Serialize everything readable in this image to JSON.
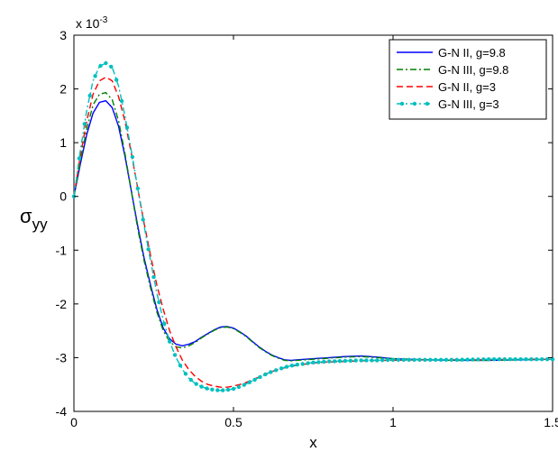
{
  "chart_data": {
    "type": "line",
    "xlabel": "x",
    "ylabel_main": "σ",
    "ylabel_sub": "yy",
    "exponent_base": "x 10",
    "exponent_power": "-3",
    "xlim": [
      0,
      1.5
    ],
    "ylim": [
      -4,
      3
    ],
    "xticks": [
      0,
      0.5,
      1,
      1.5
    ],
    "xtick_labels": [
      "0",
      "0.5",
      "1",
      "1.5"
    ],
    "yticks": [
      -4,
      -3,
      -2,
      -1,
      0,
      1,
      2,
      3
    ],
    "ytick_labels": [
      "-4",
      "-3",
      "-2",
      "-1",
      "0",
      "1",
      "2",
      "3"
    ],
    "grid": false,
    "legend_position": "top-right",
    "series": [
      {
        "name": "G-N II, g=9.8",
        "color": "#0000ff",
        "dash": "solid",
        "marker": "none",
        "x": [
          0,
          0.02,
          0.04,
          0.06,
          0.08,
          0.1,
          0.12,
          0.14,
          0.16,
          0.18,
          0.2,
          0.22,
          0.24,
          0.26,
          0.28,
          0.3,
          0.32,
          0.34,
          0.36,
          0.38,
          0.4,
          0.42,
          0.44,
          0.46,
          0.48,
          0.5,
          0.52,
          0.54,
          0.56,
          0.58,
          0.6,
          0.62,
          0.64,
          0.66,
          0.68,
          0.7,
          0.75,
          0.8,
          0.85,
          0.9,
          0.95,
          1.0,
          1.1,
          1.2,
          1.3,
          1.4,
          1.5
        ],
        "y": [
          0,
          0.6,
          1.15,
          1.55,
          1.75,
          1.78,
          1.65,
          1.3,
          0.75,
          0.1,
          -0.55,
          -1.15,
          -1.65,
          -2.1,
          -2.45,
          -2.65,
          -2.75,
          -2.78,
          -2.75,
          -2.7,
          -2.62,
          -2.55,
          -2.48,
          -2.43,
          -2.42,
          -2.45,
          -2.52,
          -2.6,
          -2.7,
          -2.8,
          -2.88,
          -2.95,
          -3.0,
          -3.04,
          -3.05,
          -3.04,
          -3.02,
          -3.0,
          -2.98,
          -2.97,
          -2.99,
          -3.02,
          -3.04,
          -3.05,
          -3.05,
          -3.04,
          -3.03
        ]
      },
      {
        "name": "G-N III, g=9.8",
        "color": "#008000",
        "dash": "dashdot",
        "marker": "none",
        "x": [
          0,
          0.02,
          0.04,
          0.06,
          0.08,
          0.1,
          0.12,
          0.14,
          0.16,
          0.18,
          0.2,
          0.22,
          0.24,
          0.26,
          0.28,
          0.3,
          0.32,
          0.34,
          0.36,
          0.38,
          0.4,
          0.42,
          0.44,
          0.46,
          0.48,
          0.5,
          0.52,
          0.54,
          0.56,
          0.58,
          0.6,
          0.62,
          0.64,
          0.66,
          0.68,
          0.7,
          0.75,
          0.8,
          0.85,
          0.9,
          0.95,
          1.0,
          1.1,
          1.2,
          1.3,
          1.4,
          1.5
        ],
        "y": [
          0,
          0.65,
          1.25,
          1.7,
          1.9,
          1.93,
          1.8,
          1.4,
          0.8,
          0.1,
          -0.6,
          -1.2,
          -1.7,
          -2.15,
          -2.5,
          -2.7,
          -2.8,
          -2.82,
          -2.78,
          -2.72,
          -2.63,
          -2.56,
          -2.49,
          -2.44,
          -2.43,
          -2.46,
          -2.53,
          -2.61,
          -2.71,
          -2.81,
          -2.89,
          -2.96,
          -3.01,
          -3.05,
          -3.06,
          -3.05,
          -3.03,
          -3.01,
          -2.99,
          -2.98,
          -3.0,
          -3.02,
          -3.04,
          -3.05,
          -3.05,
          -3.04,
          -3.03
        ]
      },
      {
        "name": "G-N II, g=3",
        "color": "#ff0000",
        "dash": "dashed",
        "marker": "none",
        "x": [
          0,
          0.02,
          0.04,
          0.06,
          0.08,
          0.1,
          0.12,
          0.14,
          0.16,
          0.18,
          0.2,
          0.22,
          0.24,
          0.26,
          0.28,
          0.3,
          0.32,
          0.34,
          0.36,
          0.38,
          0.4,
          0.42,
          0.44,
          0.46,
          0.48,
          0.5,
          0.52,
          0.54,
          0.56,
          0.58,
          0.6,
          0.62,
          0.64,
          0.66,
          0.68,
          0.7,
          0.75,
          0.8,
          0.85,
          0.9,
          0.95,
          1.0,
          1.1,
          1.2,
          1.3,
          1.4,
          1.5
        ],
        "y": [
          0,
          0.75,
          1.4,
          1.9,
          2.15,
          2.22,
          2.15,
          1.85,
          1.4,
          0.8,
          0.15,
          -0.5,
          -1.1,
          -1.65,
          -2.1,
          -2.5,
          -2.8,
          -3.05,
          -3.22,
          -3.35,
          -3.44,
          -3.5,
          -3.53,
          -3.55,
          -3.55,
          -3.53,
          -3.5,
          -3.46,
          -3.41,
          -3.36,
          -3.31,
          -3.26,
          -3.22,
          -3.19,
          -3.16,
          -3.14,
          -3.1,
          -3.08,
          -3.07,
          -3.06,
          -3.05,
          -3.05,
          -3.04,
          -3.04,
          -3.04,
          -3.03,
          -3.03
        ]
      },
      {
        "name": "G-N III, g=3",
        "color": "#00bfbf",
        "dash": "dashdot",
        "marker": "dot",
        "x": [
          0,
          0.02,
          0.04,
          0.06,
          0.08,
          0.1,
          0.12,
          0.14,
          0.16,
          0.18,
          0.2,
          0.22,
          0.24,
          0.26,
          0.28,
          0.3,
          0.32,
          0.34,
          0.36,
          0.38,
          0.4,
          0.42,
          0.44,
          0.46,
          0.48,
          0.5,
          0.52,
          0.54,
          0.56,
          0.58,
          0.6,
          0.62,
          0.64,
          0.66,
          0.68,
          0.7,
          0.75,
          0.8,
          0.85,
          0.9,
          0.95,
          1.0,
          1.1,
          1.2,
          1.3,
          1.4,
          1.5
        ],
        "y": [
          0,
          0.85,
          1.6,
          2.15,
          2.42,
          2.48,
          2.4,
          2.05,
          1.5,
          0.85,
          0.15,
          -0.55,
          -1.2,
          -1.8,
          -2.3,
          -2.7,
          -3.0,
          -3.22,
          -3.38,
          -3.48,
          -3.54,
          -3.58,
          -3.6,
          -3.61,
          -3.6,
          -3.58,
          -3.54,
          -3.49,
          -3.43,
          -3.37,
          -3.31,
          -3.26,
          -3.22,
          -3.18,
          -3.15,
          -3.13,
          -3.09,
          -3.07,
          -3.06,
          -3.05,
          -3.05,
          -3.04,
          -3.04,
          -3.04,
          -3.03,
          -3.03,
          -3.03
        ]
      }
    ]
  }
}
